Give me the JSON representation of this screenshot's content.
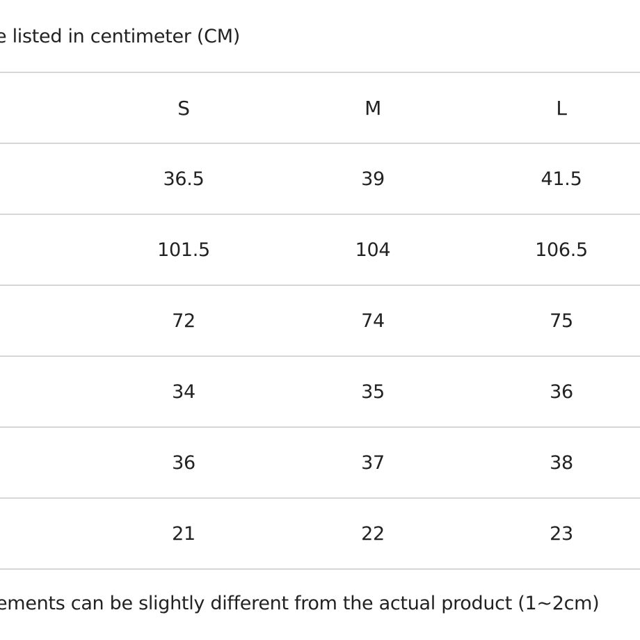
{
  "caption_top": "e listed in centimeter (CM)",
  "caption_bottom": "ements can be slightly different from the actual product (1~2cm)",
  "table": {
    "headers": [
      "",
      "S",
      "M",
      "L"
    ],
    "rows": [
      [
        "",
        "36.5",
        "39",
        "41.5"
      ],
      [
        "",
        "101.5",
        "104",
        "106.5"
      ],
      [
        "",
        "72",
        "74",
        "75"
      ],
      [
        "",
        "34",
        "35",
        "36"
      ],
      [
        "",
        "36",
        "37",
        "38"
      ],
      [
        "",
        "21",
        "22",
        "23"
      ]
    ]
  }
}
